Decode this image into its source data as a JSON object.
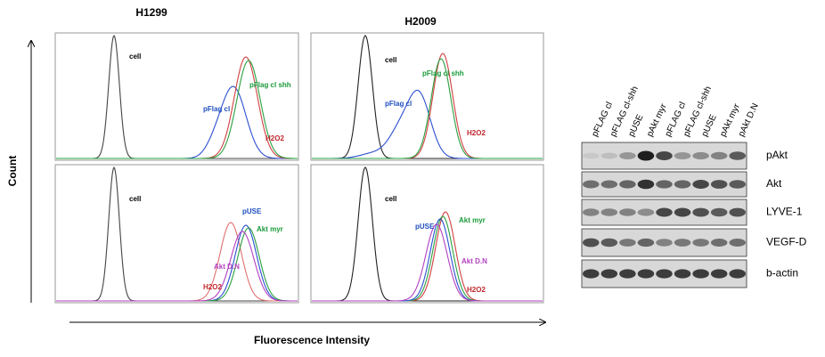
{
  "figure": {
    "cell_lines": [
      "H1299",
      "H2009"
    ],
    "y_axis_label": "Count",
    "x_axis_label": "Fluorescence Intensity",
    "panels": [
      {
        "labels": [
          "cell",
          "pFlag cl",
          "pFlag cl shh",
          "H2O2"
        ]
      },
      {
        "labels": [
          "cell",
          "pFlag cl",
          "pFlag cl shh",
          "H2O2"
        ]
      },
      {
        "labels": [
          "cell",
          "pUSE",
          "Akt myr",
          "Akt D.N",
          "H2O2"
        ]
      },
      {
        "labels": [
          "cell",
          "pUSE",
          "Akt myr",
          "Akt D.N",
          "H2O2"
        ]
      }
    ],
    "blot": {
      "lanes": [
        "pFLAG cl",
        "pFLAG cl-shh",
        "pUSE",
        "pAkt myr",
        "pFLAG cl",
        "pFLAG cl-shh",
        "pUSE",
        "pAkt myr",
        "pAkt D.N"
      ],
      "rows": [
        "pAkt",
        "Akt",
        "LYVE-1",
        "VEGF-D",
        "b-actin"
      ]
    }
  }
}
